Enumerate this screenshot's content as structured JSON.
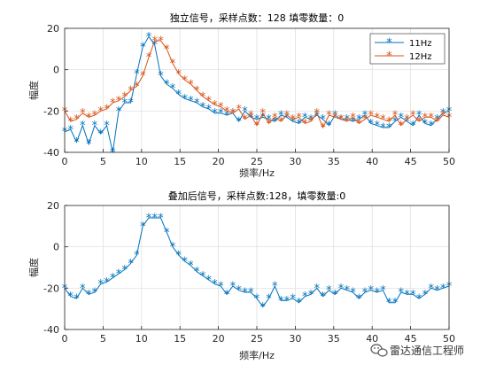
{
  "chart_data": [
    {
      "type": "line",
      "title": "独立信号，采样点数：128 填零数量：0",
      "xlabel": "频率/Hz",
      "ylabel": "幅度",
      "xlim": [
        0,
        50
      ],
      "ylim": [
        -40,
        20
      ],
      "xticks": [
        "0",
        "5",
        "10",
        "15",
        "20",
        "25",
        "30",
        "35",
        "40",
        "45",
        "50"
      ],
      "yticks": [
        "20",
        "0",
        "-20",
        "-40"
      ],
      "grid": true,
      "legend_position": "top-right",
      "x": [
        0,
        0.78,
        1.56,
        2.34,
        3.13,
        3.91,
        4.69,
        5.47,
        6.25,
        7.03,
        7.81,
        8.59,
        9.38,
        10.16,
        10.94,
        11.72,
        12.5,
        13.28,
        14.06,
        14.84,
        15.63,
        16.41,
        17.19,
        17.97,
        18.75,
        19.53,
        20.31,
        21.09,
        21.88,
        22.66,
        23.44,
        24.22,
        25,
        25.78,
        26.56,
        27.34,
        28.13,
        28.91,
        29.69,
        30.47,
        31.25,
        32.03,
        32.81,
        33.59,
        34.38,
        35.16,
        35.94,
        36.72,
        37.5,
        38.28,
        39.06,
        39.84,
        40.63,
        41.41,
        42.19,
        42.97,
        43.75,
        44.53,
        45.31,
        46.09,
        46.88,
        47.66,
        48.44,
        49.22,
        50
      ],
      "series": [
        {
          "name": "11Hz",
          "color": "#0072BD",
          "values": [
            -30,
            -29,
            -35,
            -27,
            -36,
            -27,
            -31,
            -27,
            -40,
            -20,
            -16,
            -16,
            -2,
            11,
            16,
            12,
            -3,
            -7,
            -9,
            -12,
            -14,
            -15,
            -16,
            -18,
            -19,
            -21,
            -21,
            -22,
            -21,
            -25,
            -20,
            -23,
            -24,
            -23,
            -24,
            -25,
            -22,
            -23,
            -25,
            -26,
            -23,
            -24,
            -22,
            -24,
            -27,
            -22,
            -24,
            -24,
            -25,
            -24,
            -22,
            -26,
            -27,
            -28,
            -28,
            -25,
            -23,
            -25,
            -27,
            -22,
            -26,
            -27,
            -24,
            -21,
            -20
          ]
        },
        {
          "name": "12Hz",
          "color": "#D95319",
          "values": [
            -20,
            -25,
            -24,
            -21,
            -23,
            -22,
            -20,
            -19,
            -16,
            -15,
            -13,
            -10,
            -8,
            -3,
            6,
            14,
            14,
            10,
            3,
            -2,
            -5,
            -7,
            -10,
            -13,
            -15,
            -17,
            -18,
            -20,
            -21,
            -19,
            -24,
            -22,
            -27,
            -21,
            -26,
            -23,
            -25,
            -22,
            -24,
            -23,
            -26,
            -25,
            -21,
            -28,
            -22,
            -23,
            -24,
            -25,
            -23,
            -26,
            -24,
            -22,
            -23,
            -24,
            -25,
            -22,
            -27,
            -24,
            -22,
            -25,
            -23,
            -23,
            -25,
            -22,
            -23
          ]
        }
      ]
    },
    {
      "type": "line",
      "title": "叠加后信号，采样点数:128，填零数量:0",
      "xlabel": "频率/Hz",
      "ylabel": "幅度",
      "xlim": [
        0,
        50
      ],
      "ylim": [
        -40,
        20
      ],
      "xticks": [
        "0",
        "5",
        "10",
        "15",
        "20",
        "25",
        "30",
        "35",
        "40",
        "45",
        "50"
      ],
      "yticks": [
        "20",
        "0",
        "-20",
        "-40"
      ],
      "grid": true,
      "x": [
        0,
        0.78,
        1.56,
        2.34,
        3.13,
        3.91,
        4.69,
        5.47,
        6.25,
        7.03,
        7.81,
        8.59,
        9.38,
        10.16,
        10.94,
        11.72,
        12.5,
        13.28,
        14.06,
        14.84,
        15.63,
        16.41,
        17.19,
        17.97,
        18.75,
        19.53,
        20.31,
        21.09,
        21.88,
        22.66,
        23.44,
        24.22,
        25,
        25.78,
        26.56,
        27.34,
        28.13,
        28.91,
        29.69,
        30.47,
        31.25,
        32.03,
        32.81,
        33.59,
        34.38,
        35.16,
        35.94,
        36.72,
        37.5,
        38.28,
        39.06,
        39.84,
        40.63,
        41.41,
        42.19,
        42.97,
        43.75,
        44.53,
        45.31,
        46.09,
        46.88,
        47.66,
        48.44,
        49.22,
        50
      ],
      "series": [
        {
          "name": "",
          "color": "#0072BD",
          "values": [
            -20,
            -24,
            -25,
            -20,
            -23,
            -22,
            -18,
            -17,
            -15,
            -13,
            -11,
            -8,
            -4,
            10,
            14,
            14,
            14,
            7,
            0,
            -4,
            -7,
            -9,
            -12,
            -14,
            -16,
            -18,
            -19,
            -23,
            -19,
            -21,
            -22,
            -22,
            -25,
            -29,
            -25,
            -19,
            -26,
            -26,
            -25,
            -27,
            -24,
            -23,
            -20,
            -24,
            -21,
            -23,
            -20,
            -21,
            -22,
            -25,
            -22,
            -21,
            -22,
            -21,
            -27,
            -27,
            -22,
            -23,
            -23,
            -25,
            -23,
            -20,
            -21,
            -20,
            -19
          ]
        }
      ]
    }
  ],
  "watermark": {
    "icon": "wechat-icon",
    "text": "雷达通信工程师"
  }
}
